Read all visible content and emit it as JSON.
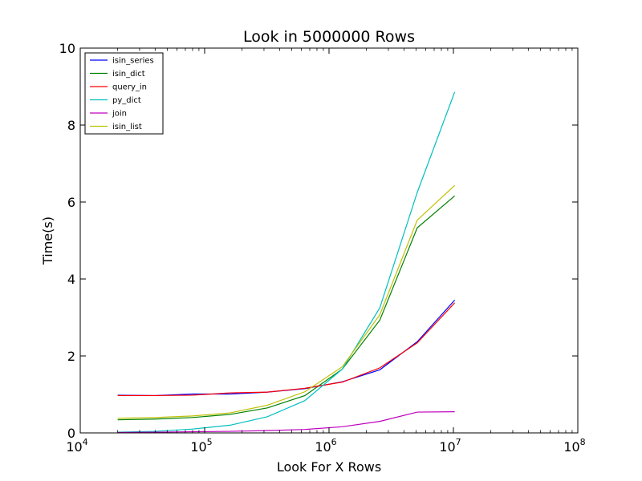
{
  "chart_data": {
    "type": "line",
    "title": "Look in 5000000 Rows",
    "xlabel": "Look For X Rows",
    "ylabel": "Time(s)",
    "xscale": "log",
    "xlim": [
      10000,
      100000000
    ],
    "ylim": [
      0,
      10
    ],
    "grid": false,
    "legend": "top-left",
    "x_ticks": [
      {
        "value": 10000,
        "base": "10",
        "exp": "4"
      },
      {
        "value": 100000,
        "base": "10",
        "exp": "5"
      },
      {
        "value": 1000000,
        "base": "10",
        "exp": "6"
      },
      {
        "value": 10000000,
        "base": "10",
        "exp": "7"
      },
      {
        "value": 100000000,
        "base": "10",
        "exp": "8"
      }
    ],
    "y_ticks": [
      {
        "value": 0,
        "label": "0"
      },
      {
        "value": 2,
        "label": "2"
      },
      {
        "value": 4,
        "label": "4"
      },
      {
        "value": 6,
        "label": "6"
      },
      {
        "value": 8,
        "label": "8"
      },
      {
        "value": 10,
        "label": "10"
      }
    ],
    "x": [
      20000,
      40000,
      80000,
      160000,
      320000,
      640000,
      1280000,
      2560000,
      5120000,
      10240000
    ],
    "series": [
      {
        "name": "isin_series",
        "color": "#0000ff",
        "values": [
          0.98,
          0.97,
          1.01,
          1.01,
          1.06,
          1.15,
          1.33,
          1.64,
          2.37,
          3.45
        ]
      },
      {
        "name": "isin_dict",
        "color": "#008000",
        "values": [
          0.34,
          0.36,
          0.4,
          0.48,
          0.65,
          0.97,
          1.66,
          2.93,
          5.33,
          6.16
        ]
      },
      {
        "name": "query_in",
        "color": "#ff0000",
        "values": [
          0.97,
          0.97,
          0.98,
          1.04,
          1.06,
          1.16,
          1.32,
          1.69,
          2.34,
          3.38
        ]
      },
      {
        "name": "py_dict",
        "color": "#00bfbf",
        "values": [
          0.02,
          0.04,
          0.1,
          0.2,
          0.42,
          0.84,
          1.66,
          3.25,
          6.25,
          8.86
        ]
      },
      {
        "name": "join",
        "color": "#bf00bf",
        "values": [
          0.01,
          0.02,
          0.03,
          0.04,
          0.06,
          0.09,
          0.16,
          0.3,
          0.54,
          0.55
        ]
      },
      {
        "name": "isin_list",
        "color": "#bfbf00",
        "values": [
          0.38,
          0.4,
          0.44,
          0.52,
          0.72,
          1.07,
          1.72,
          3.07,
          5.53,
          6.43
        ]
      }
    ]
  }
}
